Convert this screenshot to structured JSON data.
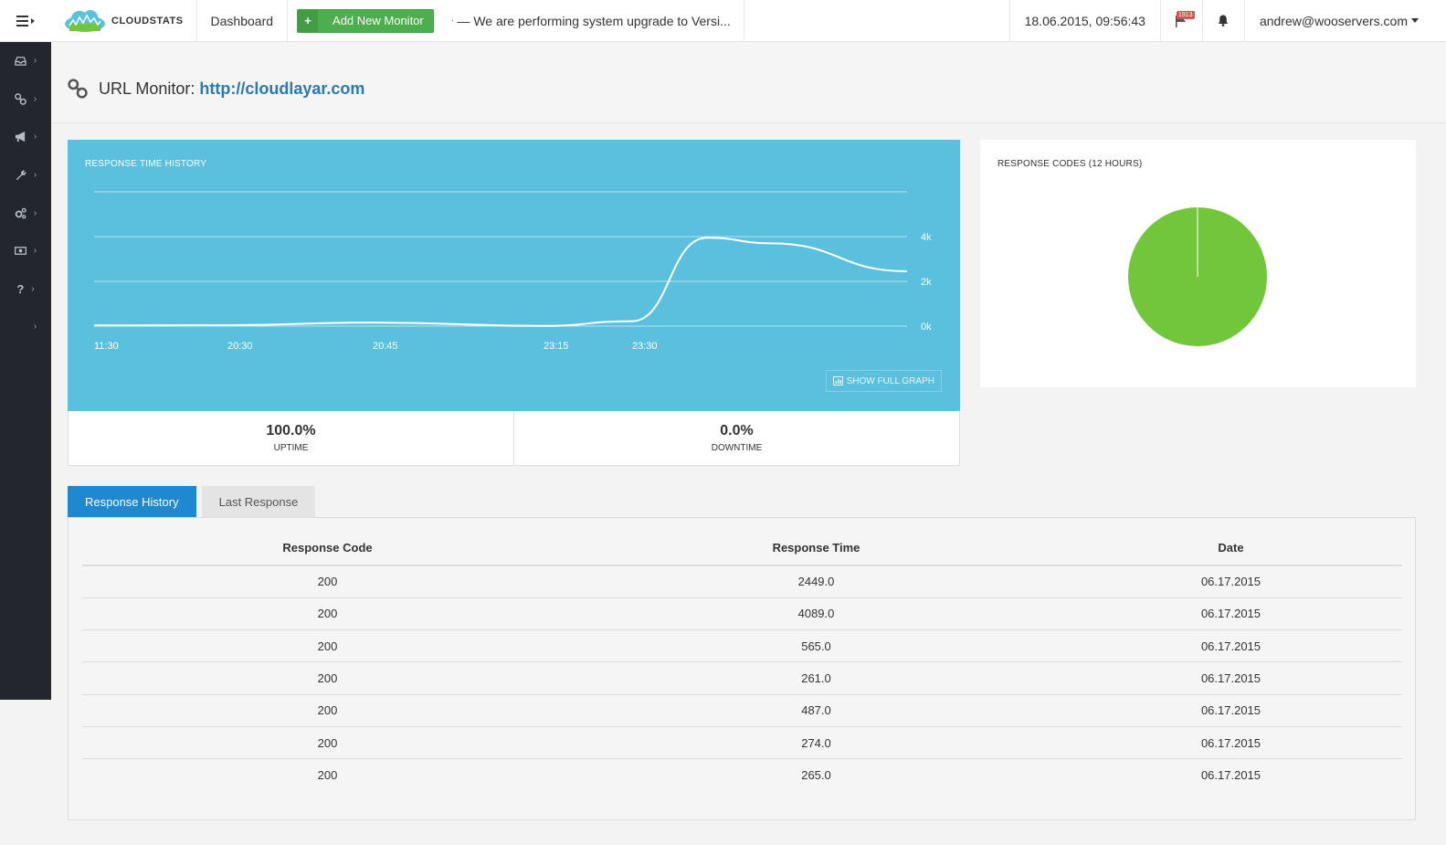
{
  "header": {
    "brand": "CLOUDSTATS",
    "dashboard_label": "Dashboard",
    "add_button_label": "Add New Monitor",
    "ticker_text": "— We are performing system upgrade to Versi...",
    "datetime": "18.06.2015, 09:56:43",
    "flag_badge": "1913",
    "user": "andrew@wooservers.com"
  },
  "sidebar": {
    "items": [
      {
        "icon": "inbox-icon"
      },
      {
        "icon": "link-icon"
      },
      {
        "icon": "megaphone-icon"
      },
      {
        "icon": "wrench-icon"
      },
      {
        "icon": "gears-icon"
      },
      {
        "icon": "money-icon"
      },
      {
        "icon": "question-icon"
      },
      {
        "icon": "blank-icon"
      }
    ]
  },
  "page": {
    "title_prefix": "URL Monitor:",
    "url": "http://cloudlayar.com"
  },
  "response_chart": {
    "label": "RESPONSE TIME HISTORY",
    "show_full_graph": "SHOW FULL GRAPH",
    "chart_data": {
      "type": "line",
      "x": [
        "11:30",
        "20:30",
        "20:45",
        "23:15",
        "23:30",
        "",
        "",
        ""
      ],
      "tick_labels_x": [
        "11:30",
        "20:30",
        "20:45",
        "23:15",
        "23:30"
      ],
      "series": [
        {
          "values": [
            30,
            40,
            160,
            10,
            220,
            3950,
            3700,
            2449
          ]
        }
      ],
      "y_ticks": [
        "0k",
        "2k",
        "4k"
      ],
      "ylim": [
        0,
        6000
      ],
      "grid": true,
      "line_color": "#ffffff"
    }
  },
  "stats": {
    "uptime_value": "100.0%",
    "uptime_label": "UPTIME",
    "downtime_value": "0.0%",
    "downtime_label": "DOWNTIME"
  },
  "codes_chart": {
    "label": "RESPONSE CODES (12 HOURS)",
    "chart_data": {
      "type": "pie",
      "slices": [
        {
          "value": 100,
          "color": "#72c63c"
        }
      ]
    }
  },
  "tabs": [
    {
      "label": "Response History",
      "active": true
    },
    {
      "label": "Last Response",
      "active": false
    }
  ],
  "table": {
    "headers": [
      "Response Code",
      "Response Time",
      "Date"
    ],
    "rows": [
      [
        "200",
        "2449.0",
        "06.17.2015"
      ],
      [
        "200",
        "4089.0",
        "06.17.2015"
      ],
      [
        "200",
        "565.0",
        "06.17.2015"
      ],
      [
        "200",
        "261.0",
        "06.17.2015"
      ],
      [
        "200",
        "487.0",
        "06.17.2015"
      ],
      [
        "200",
        "274.0",
        "06.17.2015"
      ],
      [
        "200",
        "265.0",
        "06.17.2015"
      ]
    ]
  }
}
